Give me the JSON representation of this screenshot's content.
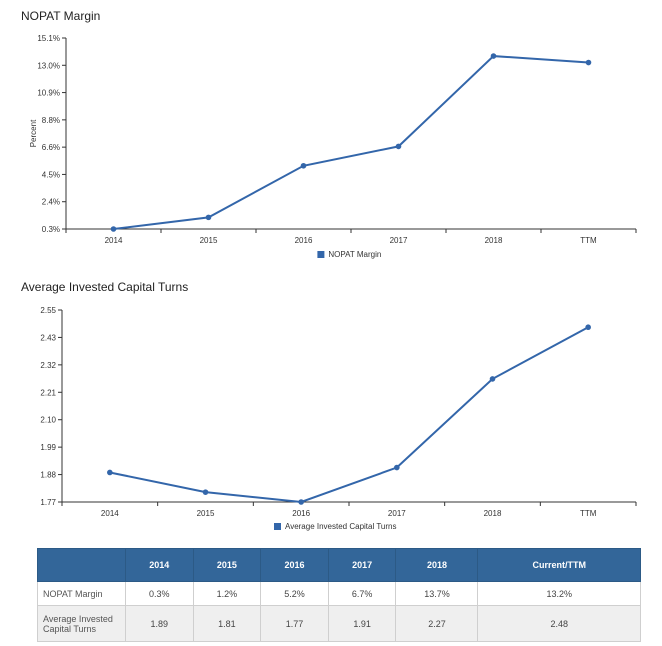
{
  "chart_data": [
    {
      "type": "line",
      "title": "NOPAT Margin",
      "ylabel": "Percent",
      "categories": [
        "2014",
        "2015",
        "2016",
        "2017",
        "2018",
        "TTM"
      ],
      "y_ticks": [
        "0.3%",
        "2.4%",
        "4.5%",
        "6.6%",
        "8.8%",
        "10.9%",
        "13.0%",
        "15.1%"
      ],
      "ylim": [
        0.3,
        15.1
      ],
      "series": [
        {
          "name": "NOPAT Margin",
          "values": [
            0.3,
            1.2,
            5.2,
            6.7,
            13.7,
            13.2
          ],
          "color": "#3366aa"
        }
      ],
      "legend": "bottom-center"
    },
    {
      "type": "line",
      "title": "Average Invested Capital Turns",
      "ylabel": "",
      "categories": [
        "2014",
        "2015",
        "2016",
        "2017",
        "2018",
        "TTM"
      ],
      "y_ticks": [
        "1.77",
        "1.88",
        "1.99",
        "2.10",
        "2.21",
        "2.32",
        "2.43",
        "2.55"
      ],
      "ylim": [
        1.77,
        2.55
      ],
      "series": [
        {
          "name": "Average Invested Capital Turns",
          "values": [
            1.89,
            1.81,
            1.77,
            1.91,
            2.27,
            2.48
          ],
          "color": "#3366aa"
        }
      ],
      "legend": "bottom-center"
    }
  ],
  "table": {
    "headers": [
      "",
      "2014",
      "2015",
      "2016",
      "2017",
      "2018",
      "Current/TTM"
    ],
    "rows": [
      {
        "label": "NOPAT Margin",
        "cells": [
          "0.3%",
          "1.2%",
          "5.2%",
          "6.7%",
          "13.7%",
          "13.2%"
        ]
      },
      {
        "label": "Average Invested Capital Turns",
        "cells": [
          "1.89",
          "1.81",
          "1.77",
          "1.91",
          "2.27",
          "2.48"
        ]
      }
    ]
  }
}
